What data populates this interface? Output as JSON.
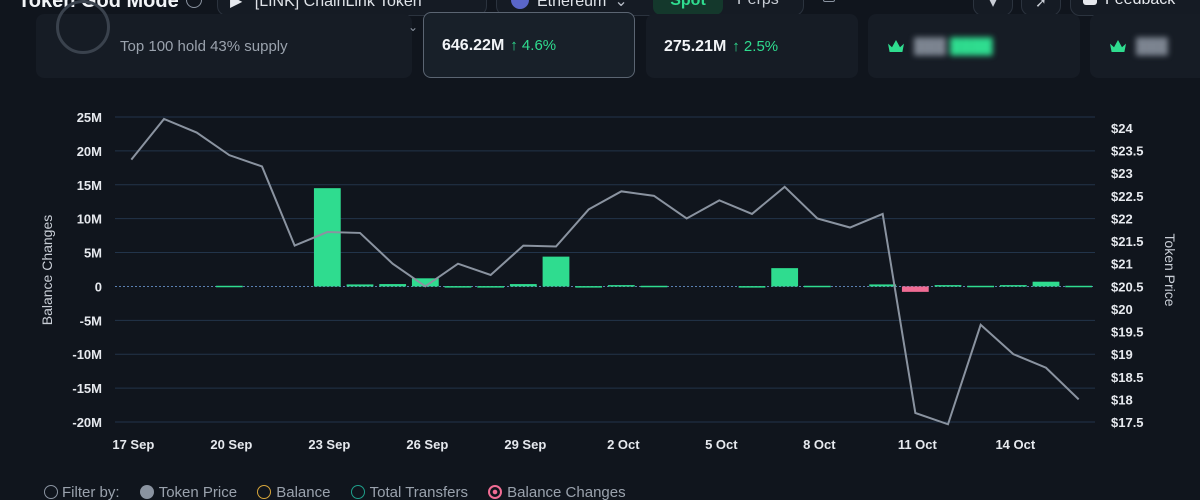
{
  "header": {
    "title": "Token God Mode",
    "token_selector": "[LINK] ChainLink Token",
    "chain": "Ethereum",
    "tabs": [
      "Spot",
      "Perps"
    ],
    "active_tab": "Spot",
    "feedback_label": "Feedback"
  },
  "cards": [
    {
      "subtitle": "Top 100 hold 43% supply"
    },
    {
      "value": "646.22M",
      "change": "↑ 4.6%"
    },
    {
      "value": "275.21M",
      "change": "↑ 2.5%"
    }
  ],
  "chart": {
    "left_axis_title": "Balance Changes",
    "right_axis_title": "Token Price",
    "left_ticks": [
      "25M",
      "20M",
      "15M",
      "10M",
      "5M",
      "0",
      "-5M",
      "-10M",
      "-15M",
      "-20M"
    ],
    "right_ticks": [
      "$24",
      "$23.5",
      "$23",
      "$22.5",
      "$22",
      "$21.5",
      "$21",
      "$20.5",
      "$20",
      "$19.5",
      "$19",
      "$18.5",
      "$18",
      "$17.5"
    ],
    "x_ticks": [
      "17 Sep",
      "20 Sep",
      "23 Sep",
      "26 Sep",
      "29 Sep",
      "2 Oct",
      "5 Oct",
      "8 Oct",
      "11 Oct",
      "14 Oct"
    ]
  },
  "chart_data": {
    "type": "bar",
    "x": [
      "17 Sep",
      "18 Sep",
      "19 Sep",
      "20 Sep",
      "21 Sep",
      "22 Sep",
      "23 Sep",
      "24 Sep",
      "25 Sep",
      "26 Sep",
      "27 Sep",
      "28 Sep",
      "29 Sep",
      "30 Sep",
      "1 Oct",
      "2 Oct",
      "3 Oct",
      "4 Oct",
      "5 Oct",
      "6 Oct",
      "7 Oct",
      "8 Oct",
      "9 Oct",
      "10 Oct",
      "11 Oct",
      "12 Oct",
      "13 Oct",
      "14 Oct",
      "15 Oct",
      "16 Oct"
    ],
    "series": [
      {
        "name": "Balance Changes",
        "axis": "left",
        "values": [
          0,
          0,
          0,
          0.1,
          0,
          0,
          14.5,
          0.3,
          0.35,
          1.2,
          0.05,
          0.05,
          0.35,
          4.4,
          0.05,
          0.2,
          0.1,
          0,
          0,
          0.05,
          2.7,
          0.1,
          0,
          0.3,
          -0.8,
          0.2,
          0.1,
          0.2,
          0.7,
          0.1
        ],
        "negative_color": "#f06c94",
        "positive_color": "#2fdc8f"
      },
      {
        "name": "Token Price",
        "axis": "right",
        "values": [
          23.3,
          24.2,
          23.9,
          23.4,
          23.15,
          21.4,
          21.7,
          21.68,
          21.0,
          20.5,
          21.0,
          20.75,
          21.4,
          21.38,
          22.2,
          22.6,
          22.5,
          22.0,
          22.4,
          22.1,
          22.7,
          22.0,
          21.8,
          22.1,
          17.7,
          17.45,
          19.65,
          19.0,
          18.7,
          18.0
        ]
      }
    ],
    "ylim_left": [
      -20,
      25
    ],
    "ylim_right": [
      17.5,
      24
    ],
    "ylabel_left": "Balance Changes (M)",
    "ylabel_right": "Token Price ($)",
    "grid": true
  },
  "filter": {
    "label": "Filter by:",
    "items": [
      "Token Price",
      "Balance",
      "Total Transfers",
      "Balance Changes"
    ]
  },
  "colors": {
    "accent": "#2fdc8f",
    "negative": "#f06c94",
    "price_line": "#8a93a0",
    "grid": "#22344a",
    "background": "#10151d"
  }
}
